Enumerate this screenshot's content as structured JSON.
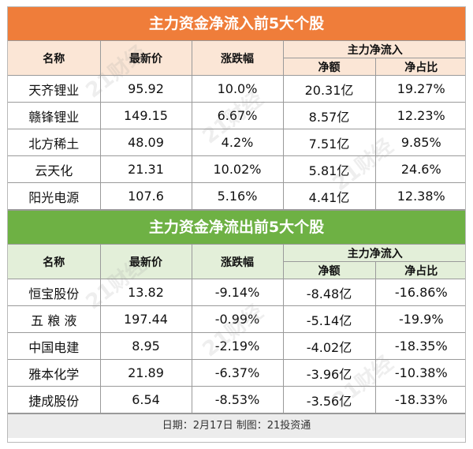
{
  "inflow": {
    "title": "主力资金净流入前5大个股",
    "headers": {
      "name": "名称",
      "price": "最新价",
      "change": "涨跌幅",
      "group": "主力净流入",
      "net": "净额",
      "ratio": "净占比"
    },
    "rows": [
      {
        "name": "天齐锂业",
        "price": "95.92",
        "change": "10.0%",
        "net": "20.31亿",
        "ratio": "19.27%"
      },
      {
        "name": "赣锋锂业",
        "price": "149.15",
        "change": "6.67%",
        "net": "8.57亿",
        "ratio": "12.23%"
      },
      {
        "name": "北方稀土",
        "price": "48.09",
        "change": "4.2%",
        "net": "7.51亿",
        "ratio": "9.85%"
      },
      {
        "name": "云天化",
        "price": "21.31",
        "change": "10.02%",
        "net": "5.81亿",
        "ratio": "24.6%"
      },
      {
        "name": "阳光电源",
        "price": "107.6",
        "change": "5.16%",
        "net": "4.41亿",
        "ratio": "12.38%"
      }
    ]
  },
  "outflow": {
    "title": "主力资金净流出前5大个股",
    "headers": {
      "name": "名称",
      "price": "最新价",
      "change": "涨跌幅",
      "group": "主力净流入",
      "net": "净额",
      "ratio": "净占比"
    },
    "rows": [
      {
        "name": "恒宝股份",
        "price": "13.82",
        "change": "-9.14%",
        "net": "-8.48亿",
        "ratio": "-16.86%"
      },
      {
        "name": "五 粮 液",
        "price": "197.44",
        "change": "-0.99%",
        "net": "-5.14亿",
        "ratio": "-19.9%"
      },
      {
        "name": "中国电建",
        "price": "8.95",
        "change": "-2.19%",
        "net": "-4.02亿",
        "ratio": "-18.35%"
      },
      {
        "name": "雅本化学",
        "price": "21.89",
        "change": "-6.37%",
        "net": "-3.96亿",
        "ratio": "-10.38%"
      },
      {
        "name": "捷成股份",
        "price": "6.54",
        "change": "-8.53%",
        "net": "-3.56亿",
        "ratio": "-18.33%"
      }
    ]
  },
  "footer": "日期：2月17日 制图：21投资通",
  "watermark": "21财经",
  "colors": {
    "inflow_banner": "#ef7d3a",
    "outflow_banner": "#6eb144",
    "inflow_header": "#fbe6d6",
    "outflow_header": "#e3efd9"
  }
}
